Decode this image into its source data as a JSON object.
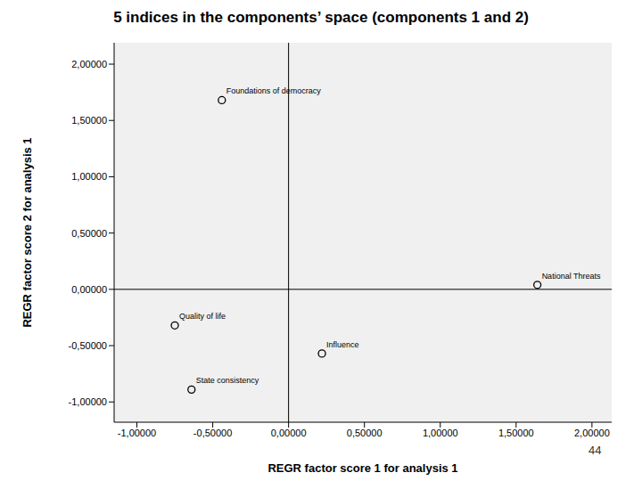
{
  "chart_data": {
    "type": "scatter",
    "title": "5 indices in the components’ space (components 1 and 2)",
    "x_label": "REGR factor score   1 for analysis 1",
    "y_label": "REGR factor score   2 for analysis 1",
    "labels": [
      "Foundations of democracy",
      "National Threats",
      "Quality of life",
      "Influence",
      "State consistency"
    ],
    "x": [
      -0.44,
      1.64,
      -0.75,
      0.22,
      -0.64
    ],
    "values": [
      1.68,
      0.04,
      -0.32,
      -0.57,
      -0.89
    ],
    "color": "#000000",
    "marker": "circle",
    "grid": false,
    "xlim": [
      -1.15,
      2.13
    ],
    "ylim": [
      -1.18,
      2.19
    ],
    "xticks": [
      {
        "value": -1,
        "label": "-1,00000"
      },
      {
        "value": -0.5,
        "label": "-0,50000"
      },
      {
        "value": 0,
        "label": "0,00000"
      },
      {
        "value": 0.5,
        "label": "0,50000"
      },
      {
        "value": 1,
        "label": "1,00000"
      },
      {
        "value": 1.5,
        "label": "1,50000"
      },
      {
        "value": 2,
        "label": "2,00000"
      }
    ],
    "yticks": [
      {
        "value": -1,
        "label": "-1,00000"
      },
      {
        "value": -0.5,
        "label": "-0,50000"
      },
      {
        "value": 0,
        "label": "0,00000"
      },
      {
        "value": 0.5,
        "label": "0,50000"
      },
      {
        "value": 1,
        "label": "1,00000"
      },
      {
        "value": 1.5,
        "label": "1,50000"
      },
      {
        "value": 2,
        "label": "2,00000"
      }
    ],
    "annotation": "44"
  }
}
